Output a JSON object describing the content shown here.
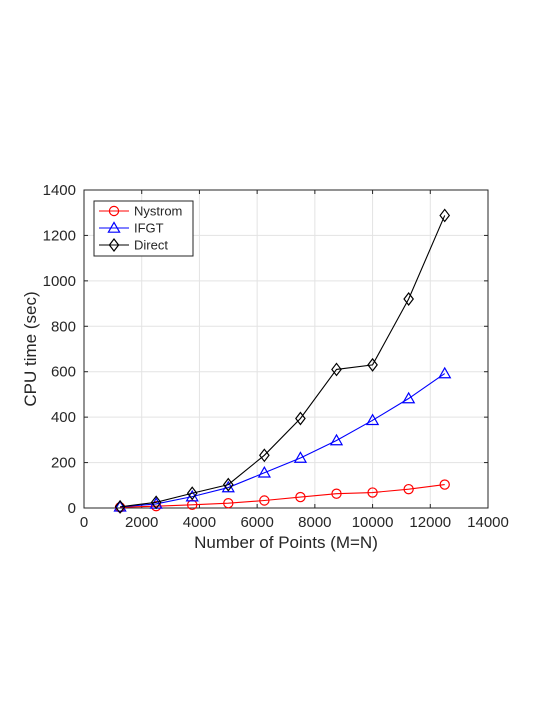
{
  "chart_data": {
    "type": "line",
    "xlabel": "Number of Points (M=N)",
    "ylabel": "CPU time (sec)",
    "xlim": [
      0,
      14000
    ],
    "ylim": [
      0,
      1400
    ],
    "xticks": [
      0,
      2000,
      4000,
      6000,
      8000,
      10000,
      12000,
      14000
    ],
    "yticks": [
      0,
      200,
      400,
      600,
      800,
      1000,
      1200,
      1400
    ],
    "grid": true,
    "legend_position": "top-left",
    "x": [
      1250,
      2500,
      3750,
      5000,
      6250,
      7500,
      8750,
      10000,
      11250,
      12500
    ],
    "series": [
      {
        "name": "Nystrom",
        "color": "#ff0000",
        "marker": "circle",
        "values": [
          3,
          8,
          14,
          21,
          33,
          48,
          63,
          68,
          83,
          103
        ]
      },
      {
        "name": "IFGT",
        "color": "#0000ff",
        "marker": "triangle",
        "values": [
          5,
          18,
          50,
          90,
          155,
          220,
          297,
          386,
          482,
          592
        ]
      },
      {
        "name": "Direct",
        "color": "#000000",
        "marker": "diamond",
        "values": [
          5,
          25,
          65,
          103,
          232,
          394,
          610,
          630,
          920,
          1288
        ]
      }
    ]
  }
}
